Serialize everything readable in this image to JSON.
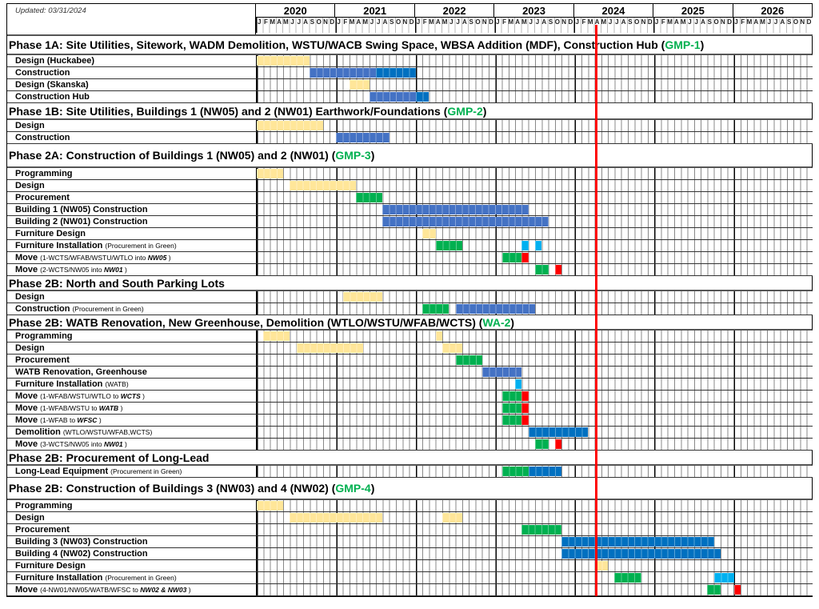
{
  "updated_label": "Updated:  03/31/2024",
  "years": [
    "2020",
    "2021",
    "2022",
    "2023",
    "2024",
    "2025",
    "2026"
  ],
  "month_letters": [
    "J",
    "F",
    "M",
    "A",
    "M",
    "J",
    "J",
    "A",
    "S",
    "O",
    "N",
    "D"
  ],
  "colors": {
    "design": "#FFE699",
    "construction": "#4472C4",
    "construction_dark": "#0070C0",
    "procurement": "#00B050",
    "furniture": "#00B0F0",
    "move": "#FF0000",
    "today_line": "#FF0000"
  },
  "chart_data": {
    "type": "gantt",
    "timeline_start": "2020-01",
    "timeline_end": "2026-12",
    "today_line": "2024-03-31",
    "sections": [
      {
        "title": "Phase 1A:  Site Utilities, Sitework, WADM Demolition, WSTU/WACB Swing Space, WBSA Addition (MDF), Construction Hub (",
        "tag": "GMP-1",
        "close": ")",
        "h": 24,
        "tasks": [
          {
            "label": "Design (Huckabee)",
            "bars": [
              [
                "2020-01",
                "2020-08",
                "design"
              ]
            ]
          },
          {
            "label": "Construction",
            "bars": [
              [
                "2020-09",
                "2021-06",
                "construction"
              ],
              [
                "2021-07",
                "2021-12",
                "construction_dark"
              ]
            ]
          },
          {
            "label": "Design (Skanska)",
            "bars": [
              [
                "2021-03",
                "2021-05",
                "design"
              ]
            ]
          },
          {
            "label": "Construction Hub",
            "bars": [
              [
                "2021-06",
                "2021-12",
                "construction"
              ],
              [
                "2022-01",
                "2022-02",
                "construction_dark"
              ]
            ]
          }
        ]
      },
      {
        "title": "Phase 1B:  Site Utilities, Buildings 1 (NW05) and 2 (NW01) Earthwork/Foundations (",
        "tag": "GMP-2",
        "close": ")",
        "h": 21,
        "tasks": [
          {
            "label": "Design",
            "bars": [
              [
                "2020-01",
                "2020-10",
                "design"
              ]
            ]
          },
          {
            "label": "Construction",
            "bars": [
              [
                "2021-01",
                "2021-08",
                "construction"
              ]
            ]
          }
        ]
      },
      {
        "title": "Phase 2A:  Construction of Buildings 1 (NW05) and 2 (NW01) (",
        "tag": "GMP-3",
        "close": ")",
        "h": 30,
        "tasks": [
          {
            "label": "Programming",
            "bars": [
              [
                "2020-01",
                "2020-04",
                "design"
              ]
            ]
          },
          {
            "label": "Design",
            "bars": [
              [
                "2020-06",
                "2021-03",
                "design"
              ]
            ]
          },
          {
            "label": "Procurement",
            "bars": [
              [
                "2021-04",
                "2021-07",
                "procurement"
              ]
            ]
          },
          {
            "label": "Building 1 (NW05) Construction",
            "bars": [
              [
                "2021-08",
                "2023-05",
                "construction"
              ]
            ]
          },
          {
            "label": "Building 2 (NW01) Construction",
            "bars": [
              [
                "2021-08",
                "2023-08",
                "construction"
              ]
            ]
          },
          {
            "label": "Furniture Design",
            "bars": [
              [
                "2022-02",
                "2022-03",
                "design"
              ]
            ]
          },
          {
            "label": "Furniture Installation",
            "note": "(Procurement in Green)",
            "bars": [
              [
                "2022-04",
                "2022-07",
                "procurement"
              ],
              [
                "2023-05",
                "2023-05",
                "furniture"
              ],
              [
                "2023-07",
                "2023-07",
                "furniture"
              ]
            ]
          },
          {
            "label": "Move",
            "note": "(1-WCTS/WFAB/WSTU/WTLO into ",
            "em": "NW05",
            "end": " )",
            "bars": [
              [
                "2023-02",
                "2023-04",
                "procurement"
              ],
              [
                "2023-05",
                "2023-05",
                "move"
              ]
            ]
          },
          {
            "label": "Move",
            "note": "(2-WCTS/NW05 into ",
            "em": "NW01",
            "end": " )",
            "bars": [
              [
                "2023-07",
                "2023-08",
                "procurement"
              ],
              [
                "2023-10",
                "2023-10",
                "move"
              ]
            ]
          }
        ]
      },
      {
        "title": "Phase 2B:  North and South Parking Lots",
        "tag": "",
        "close": "",
        "h": 19,
        "tasks": [
          {
            "label": "Design",
            "bars": [
              [
                "2021-02",
                "2021-07",
                "design"
              ]
            ]
          },
          {
            "label": "Construction",
            "note": "(Procurement in Green)",
            "bars": [
              [
                "2022-02",
                "2022-05",
                "procurement"
              ],
              [
                "2022-07",
                "2023-06",
                "construction"
              ]
            ]
          }
        ]
      },
      {
        "title": "Phase 2B: WATB Renovation, New Greenhouse, Demolition (WTLO/WSTU/WFAB/WCTS) (",
        "tag": "WA-2",
        "close": ")",
        "h": 19,
        "tasks": [
          {
            "label": "Programming",
            "bars": [
              [
                "2020-02",
                "2020-05",
                "design"
              ],
              [
                "2022-04",
                "2022-04",
                "design"
              ]
            ]
          },
          {
            "label": "Design",
            "bars": [
              [
                "2020-07",
                "2021-04",
                "design"
              ],
              [
                "2022-05",
                "2022-07",
                "design"
              ]
            ]
          },
          {
            "label": "Procurement",
            "bars": [
              [
                "2022-07",
                "2022-10",
                "procurement"
              ]
            ]
          },
          {
            "label": "WATB Renovation, Greenhouse",
            "bars": [
              [
                "2022-11",
                "2023-04",
                "construction"
              ]
            ]
          },
          {
            "label": "Furniture Installation",
            "note": "(WATB)",
            "bars": [
              [
                "2023-04",
                "2023-04",
                "furniture"
              ]
            ]
          },
          {
            "label": "Move",
            "note": "(1-WFAB/WSTU/WTLO to ",
            "em": "WCTS",
            "end": " )",
            "bars": [
              [
                "2023-02",
                "2023-04",
                "procurement"
              ],
              [
                "2023-05",
                "2023-05",
                "move"
              ]
            ]
          },
          {
            "label": "Move",
            "note": "(1-WFAB/WSTU to ",
            "em": "WATB",
            "end": " )",
            "bars": [
              [
                "2023-02",
                "2023-04",
                "procurement"
              ],
              [
                "2023-05",
                "2023-05",
                "move"
              ]
            ]
          },
          {
            "label": "Move",
            "note": "(1-WFAB to ",
            "em": "WFSC",
            "end": " )",
            "bars": [
              [
                "2023-02",
                "2023-04",
                "procurement"
              ],
              [
                "2023-05",
                "2023-05",
                "move"
              ]
            ]
          },
          {
            "label": "Demolition",
            "note": "(WTLO/WSTU/WFAB,WCTS)",
            "bars": [
              [
                "2023-06",
                "2024-02",
                "construction_dark"
              ]
            ]
          },
          {
            "label": "Move",
            "note": "(3-WCTS/NW05 into ",
            "em": "NW01",
            "end": " )",
            "bars": [
              [
                "2023-07",
                "2023-08",
                "procurement"
              ],
              [
                "2023-10",
                "2023-10",
                "move"
              ]
            ]
          }
        ]
      },
      {
        "title": "Phase 2B:  Procurement of Long-Lead",
        "tag": "",
        "close": "",
        "h": 19,
        "tasks": [
          {
            "label": "Long-Lead Equipment",
            "note": "(Procurement in Green)",
            "bars": [
              [
                "2023-02",
                "2023-05",
                "procurement"
              ],
              [
                "2023-06",
                "2023-10",
                "construction_dark"
              ]
            ]
          }
        ]
      },
      {
        "title": "Phase 2B:  Construction of Buildings 3 (NW03) and 4 (NW02) (",
        "tag": "GMP-4",
        "close": ")",
        "h": 28,
        "tasks": [
          {
            "label": "Programming",
            "bars": [
              [
                "2020-01",
                "2020-04",
                "design"
              ]
            ]
          },
          {
            "label": "Design",
            "bars": [
              [
                "2020-06",
                "2021-07",
                "design"
              ],
              [
                "2022-05",
                "2022-07",
                "design"
              ]
            ]
          },
          {
            "label": "Procurement",
            "bars": [
              [
                "2023-05",
                "2023-10",
                "procurement"
              ]
            ]
          },
          {
            "label": "Building 3 (NW03) Construction",
            "bars": [
              [
                "2023-11",
                "2025-09",
                "construction_dark"
              ]
            ]
          },
          {
            "label": "Building 4 (NW02) Construction",
            "bars": [
              [
                "2023-11",
                "2025-10",
                "construction_dark"
              ]
            ]
          },
          {
            "label": "Furniture Design",
            "bars": [
              [
                "2024-04",
                "2024-05",
                "design"
              ]
            ]
          },
          {
            "label": "Furniture Installation",
            "note": "(Procurement in Green)",
            "bars": [
              [
                "2024-07",
                "2024-10",
                "procurement"
              ],
              [
                "2025-10",
                "2025-12",
                "furniture"
              ]
            ]
          },
          {
            "label": "Move",
            "note": "(4-NW01/NW05/WATB/WFSC to ",
            "em": "NW02 & NW03",
            "end": " )",
            "bars": [
              [
                "2025-09",
                "2025-10",
                "procurement"
              ],
              [
                "2026-01",
                "2026-01",
                "move"
              ]
            ]
          }
        ]
      }
    ]
  }
}
